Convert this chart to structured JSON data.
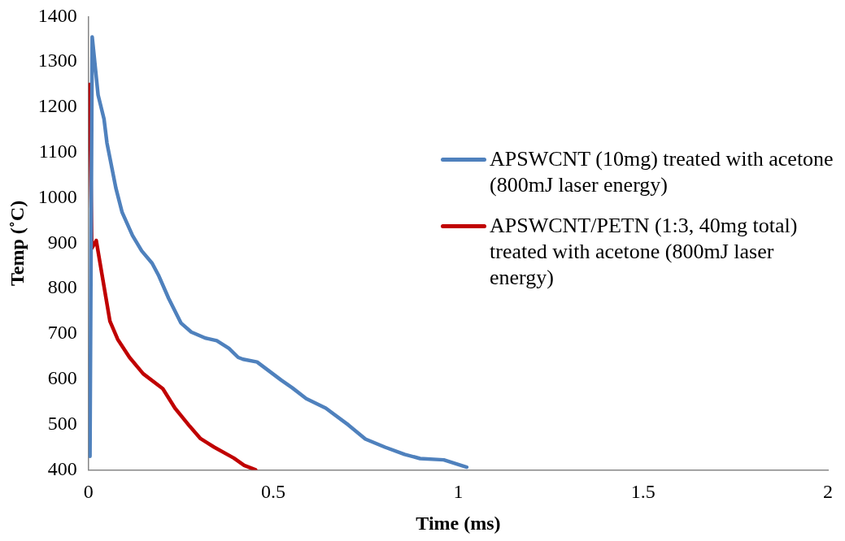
{
  "chart_data": {
    "type": "line",
    "xlabel": "Time (ms)",
    "ylabel": "Temp (˚C)",
    "xlim": [
      0,
      2
    ],
    "xticks": [
      0,
      0.5,
      1,
      1.5,
      2
    ],
    "ylim": [
      400,
      1400
    ],
    "yticks": [
      400,
      500,
      600,
      700,
      800,
      900,
      1000,
      1100,
      1200,
      1300,
      1400
    ],
    "grid": false,
    "legend": "right",
    "marker": "none",
    "line_style": "solid",
    "series": [
      {
        "name": "APSWCNT (10mg) treated with acetone (800mJ laser energy)",
        "color": "#4f81bd",
        "x": [
          0.004,
          0.01,
          0.026,
          0.042,
          0.05,
          0.074,
          0.091,
          0.119,
          0.144,
          0.172,
          0.189,
          0.217,
          0.25,
          0.278,
          0.315,
          0.347,
          0.38,
          0.405,
          0.418,
          0.456,
          0.521,
          0.551,
          0.589,
          0.642,
          0.703,
          0.749,
          0.802,
          0.855,
          0.897,
          0.961,
          1.023
        ],
        "values": [
          430,
          1355,
          1227,
          1174,
          1121,
          1022,
          968,
          917,
          883,
          856,
          830,
          778,
          724,
          704,
          691,
          685,
          668,
          648,
          644,
          638,
          598,
          581,
          557,
          536,
          499,
          468,
          450,
          434,
          425,
          422,
          406
        ]
      },
      {
        "name": "APSWCNT/PETN (1:3, 40mg total) treated with acetone (800mJ laser energy)",
        "color": "#c00000",
        "x": [
          0.003,
          0.009,
          0.021,
          0.038,
          0.058,
          0.079,
          0.111,
          0.148,
          0.201,
          0.234,
          0.274,
          0.303,
          0.34,
          0.393,
          0.421,
          0.452
        ],
        "values": [
          1250,
          889,
          906,
          824,
          728,
          688,
          648,
          612,
          579,
          536,
          496,
          469,
          450,
          426,
          410,
          400
        ]
      }
    ]
  }
}
